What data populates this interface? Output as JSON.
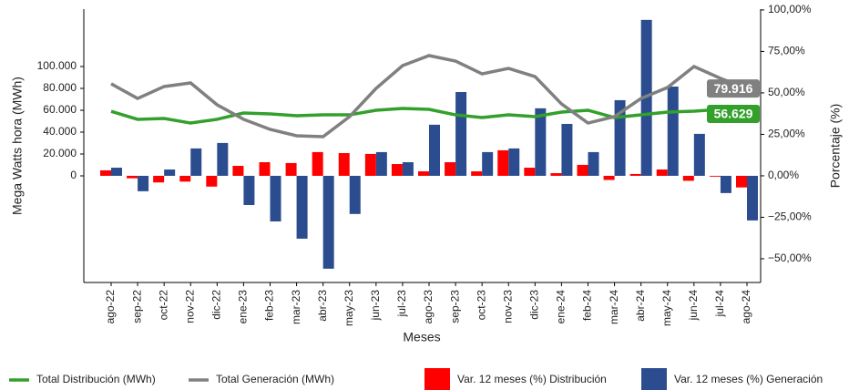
{
  "chart_data": {
    "type": "bar",
    "ylabel": "Mega Watts hora (MWh)",
    "y2label": "Porcentaje (%)",
    "xlabel": "Meses",
    "categories": [
      "ago-22",
      "sep-22",
      "oct-22",
      "nov-22",
      "dic-22",
      "ene-23",
      "feb-23",
      "mar-23",
      "abr-23",
      "may-23",
      "jun-23",
      "jul-23",
      "ago-23",
      "sep-23",
      "oct-23",
      "nov-23",
      "dic-23",
      "ene-24",
      "feb-24",
      "mar-24",
      "abr-24",
      "may-24",
      "jun-24",
      "jul-24",
      "ago-24"
    ],
    "ylim": [
      -97500,
      152500
    ],
    "yticks": [
      0,
      {
        "value": 20000,
        "label": "20.000"
      },
      {
        "value": 40000,
        "label": "40.000"
      },
      {
        "value": 60000,
        "label": "60.000"
      },
      {
        "value": 80000,
        "label": "80.000"
      },
      {
        "value": 100000,
        "label": "100.000"
      }
    ],
    "y2lim": [
      -64.3,
      100.5
    ],
    "y2ticks": [
      {
        "value": -50,
        "label": "−50,00%"
      },
      {
        "value": -25,
        "label": "−25,00%"
      },
      {
        "value": 0,
        "label": "0,00%"
      },
      {
        "value": 25,
        "label": "25,00%"
      },
      {
        "value": 50,
        "label": "50,00%"
      },
      {
        "value": 75,
        "label": "75,00%"
      },
      {
        "value": 100,
        "label": "100,00%"
      }
    ],
    "series": [
      {
        "name": "Total Distribución (MWh)",
        "type": "line",
        "color": "#33a02c",
        "values": [
          59000,
          51700,
          52500,
          48300,
          51700,
          57500,
          56700,
          55000,
          55800,
          55800,
          60000,
          61700,
          60800,
          55800,
          53300,
          55800,
          54200,
          58300,
          60000,
          53300,
          55800,
          58300,
          59200,
          60800,
          56629
        ],
        "value_labels": [
          null,
          null,
          null,
          null,
          null,
          null,
          null,
          null,
          null,
          null,
          null,
          null,
          null,
          null,
          null,
          null,
          null,
          null,
          null,
          null,
          null,
          null,
          null,
          null,
          "56.629"
        ]
      },
      {
        "name": "Total Generación (MWh)",
        "type": "line",
        "color": "#808080",
        "values": [
          84200,
          70800,
          81700,
          85000,
          65000,
          51700,
          42500,
          36700,
          35800,
          54200,
          80000,
          100800,
          110000,
          105000,
          93300,
          98300,
          90800,
          65800,
          48300,
          54200,
          70800,
          80800,
          100000,
          89200,
          79916
        ],
        "value_labels": [
          null,
          null,
          null,
          null,
          null,
          null,
          null,
          null,
          null,
          null,
          null,
          null,
          null,
          null,
          null,
          null,
          null,
          null,
          null,
          null,
          null,
          null,
          null,
          null,
          "79.916"
        ]
      },
      {
        "name": "Var. 12 meses (%) Distribución",
        "type": "bar",
        "axis": "y2",
        "color": "#ff0000",
        "values": [
          3.3,
          -1.5,
          -4,
          -3.5,
          -6.5,
          6,
          8.2,
          7.7,
          14.3,
          13.7,
          13.2,
          7.1,
          2.7,
          8.2,
          2.7,
          15.4,
          4.9,
          1.6,
          6.6,
          -2.5,
          1.1,
          3.8,
          -3,
          -0.5,
          -7
        ]
      },
      {
        "name": "Var. 12 meses (%) Generación",
        "type": "bar",
        "axis": "y2",
        "color": "#2b4d8f",
        "values": [
          4.9,
          -9.3,
          3.8,
          16.5,
          19.8,
          -17.6,
          -27.5,
          -37.9,
          -56,
          -23,
          14.3,
          8.2,
          30.8,
          50.5,
          14.3,
          16.5,
          40.7,
          31.3,
          14.3,
          45.6,
          94,
          53.8,
          25.3,
          -10.4,
          -26.9
        ]
      }
    ]
  }
}
